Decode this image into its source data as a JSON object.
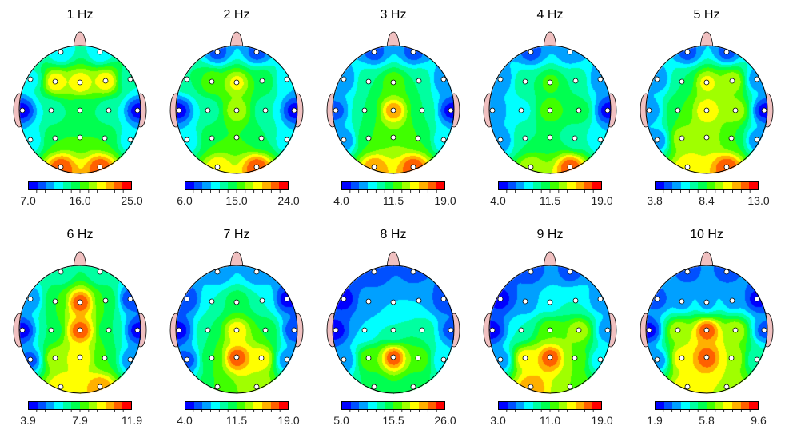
{
  "chart_data": {
    "type": "heatmap",
    "description_of_values": "electrode_levels on 0-12 colorbar step scale",
    "colormap": [
      "#0000ff",
      "#0050ff",
      "#00a0ff",
      "#00ffff",
      "#00ffa0",
      "#00ff50",
      "#40ff00",
      "#a0ff00",
      "#ffff00",
      "#ffb000",
      "#ff6000",
      "#ff0000"
    ],
    "electrodes": [
      "Fp1",
      "Fp2",
      "F7",
      "F3",
      "Fz",
      "F4",
      "F8",
      "T3",
      "C3",
      "Cz",
      "C4",
      "T4",
      "T5",
      "P3",
      "Pz",
      "P4",
      "T6",
      "O1",
      "O2"
    ],
    "maps": [
      {
        "title": "1 Hz",
        "colorbar": [
          "7.0",
          "16.0",
          "25.0"
        ],
        "range": [
          7.0,
          25.0
        ],
        "electrode_levels": [
          3,
          3,
          3.5,
          9,
          9,
          9,
          4,
          0.5,
          4,
          5,
          4,
          0.5,
          3,
          6,
          6,
          6,
          3,
          11,
          11
        ]
      },
      {
        "title": "2 Hz",
        "colorbar": [
          "6.0",
          "15.0",
          "24.0"
        ],
        "range": [
          6.0,
          24.0
        ],
        "electrode_levels": [
          1.5,
          1.5,
          5,
          7,
          8.5,
          6,
          3,
          0.5,
          4,
          8,
          4,
          0.5,
          3,
          6,
          6,
          5,
          3,
          9,
          11
        ]
      },
      {
        "title": "3 Hz",
        "colorbar": [
          "4.0",
          "11.5",
          "19.0"
        ],
        "range": [
          4.0,
          19.0
        ],
        "electrode_levels": [
          1.5,
          1.5,
          2,
          5,
          7,
          5,
          2,
          1.5,
          5,
          10,
          5,
          0.5,
          2,
          6,
          7,
          6,
          3,
          10,
          11
        ]
      },
      {
        "title": "4 Hz",
        "colorbar": [
          "4.0",
          "11.5",
          "19.0"
        ],
        "range": [
          4.0,
          19.0
        ],
        "electrode_levels": [
          1.5,
          2,
          2,
          5,
          6.5,
          5,
          2,
          2,
          3.5,
          7,
          6,
          0.5,
          2,
          5,
          5,
          4,
          3,
          8,
          11
        ]
      },
      {
        "title": "5 Hz",
        "colorbar": [
          "3.8",
          "8.4",
          "13.0"
        ],
        "range": [
          3.8,
          13.0
        ],
        "electrode_levels": [
          1.5,
          1.5,
          2,
          5,
          8.5,
          8,
          2,
          2,
          6,
          9,
          8,
          0.5,
          2,
          8,
          8,
          6,
          2,
          9,
          11
        ]
      },
      {
        "title": "6 Hz",
        "colorbar": [
          "3.9",
          "7.9",
          "11.9"
        ],
        "range": [
          3.9,
          11.9
        ],
        "electrode_levels": [
          4,
          4,
          2,
          6,
          11,
          6,
          1,
          0.5,
          5,
          11,
          5,
          0.5,
          1.5,
          8,
          9,
          6,
          2,
          9,
          10
        ]
      },
      {
        "title": "7 Hz",
        "colorbar": [
          "4.0",
          "11.5",
          "19.0"
        ],
        "range": [
          4.0,
          19.0
        ],
        "electrode_levels": [
          2,
          2,
          1,
          4,
          6,
          4,
          0.5,
          0.5,
          5,
          9,
          6,
          1,
          1.5,
          6,
          11,
          9,
          2,
          6,
          8
        ]
      },
      {
        "title": "8 Hz",
        "colorbar": [
          "5.0",
          "15.5",
          "26.0"
        ],
        "range": [
          5.0,
          26.0
        ],
        "electrode_levels": [
          1,
          1.5,
          0.5,
          2.5,
          3,
          3,
          1,
          0.5,
          3,
          4,
          5,
          1.5,
          2,
          7,
          11,
          7,
          3,
          5,
          5
        ]
      },
      {
        "title": "9 Hz",
        "colorbar": [
          "3.0",
          "11.0",
          "19.0"
        ],
        "range": [
          3.0,
          19.0
        ],
        "electrode_levels": [
          1.5,
          1.5,
          0.5,
          2,
          3.5,
          4,
          2,
          0.5,
          4,
          7,
          8,
          2,
          2,
          9,
          11,
          7,
          3,
          10,
          7
        ]
      },
      {
        "title": "10 Hz",
        "colorbar": [
          "1.9",
          "5.8",
          "9.6"
        ],
        "range": [
          1.9,
          9.6
        ],
        "electrode_levels": [
          1.5,
          1.5,
          1.5,
          2.5,
          2.5,
          2.5,
          0.5,
          0.5,
          8,
          11,
          8,
          1.5,
          2,
          9,
          11,
          8,
          4,
          9,
          8
        ]
      }
    ]
  }
}
